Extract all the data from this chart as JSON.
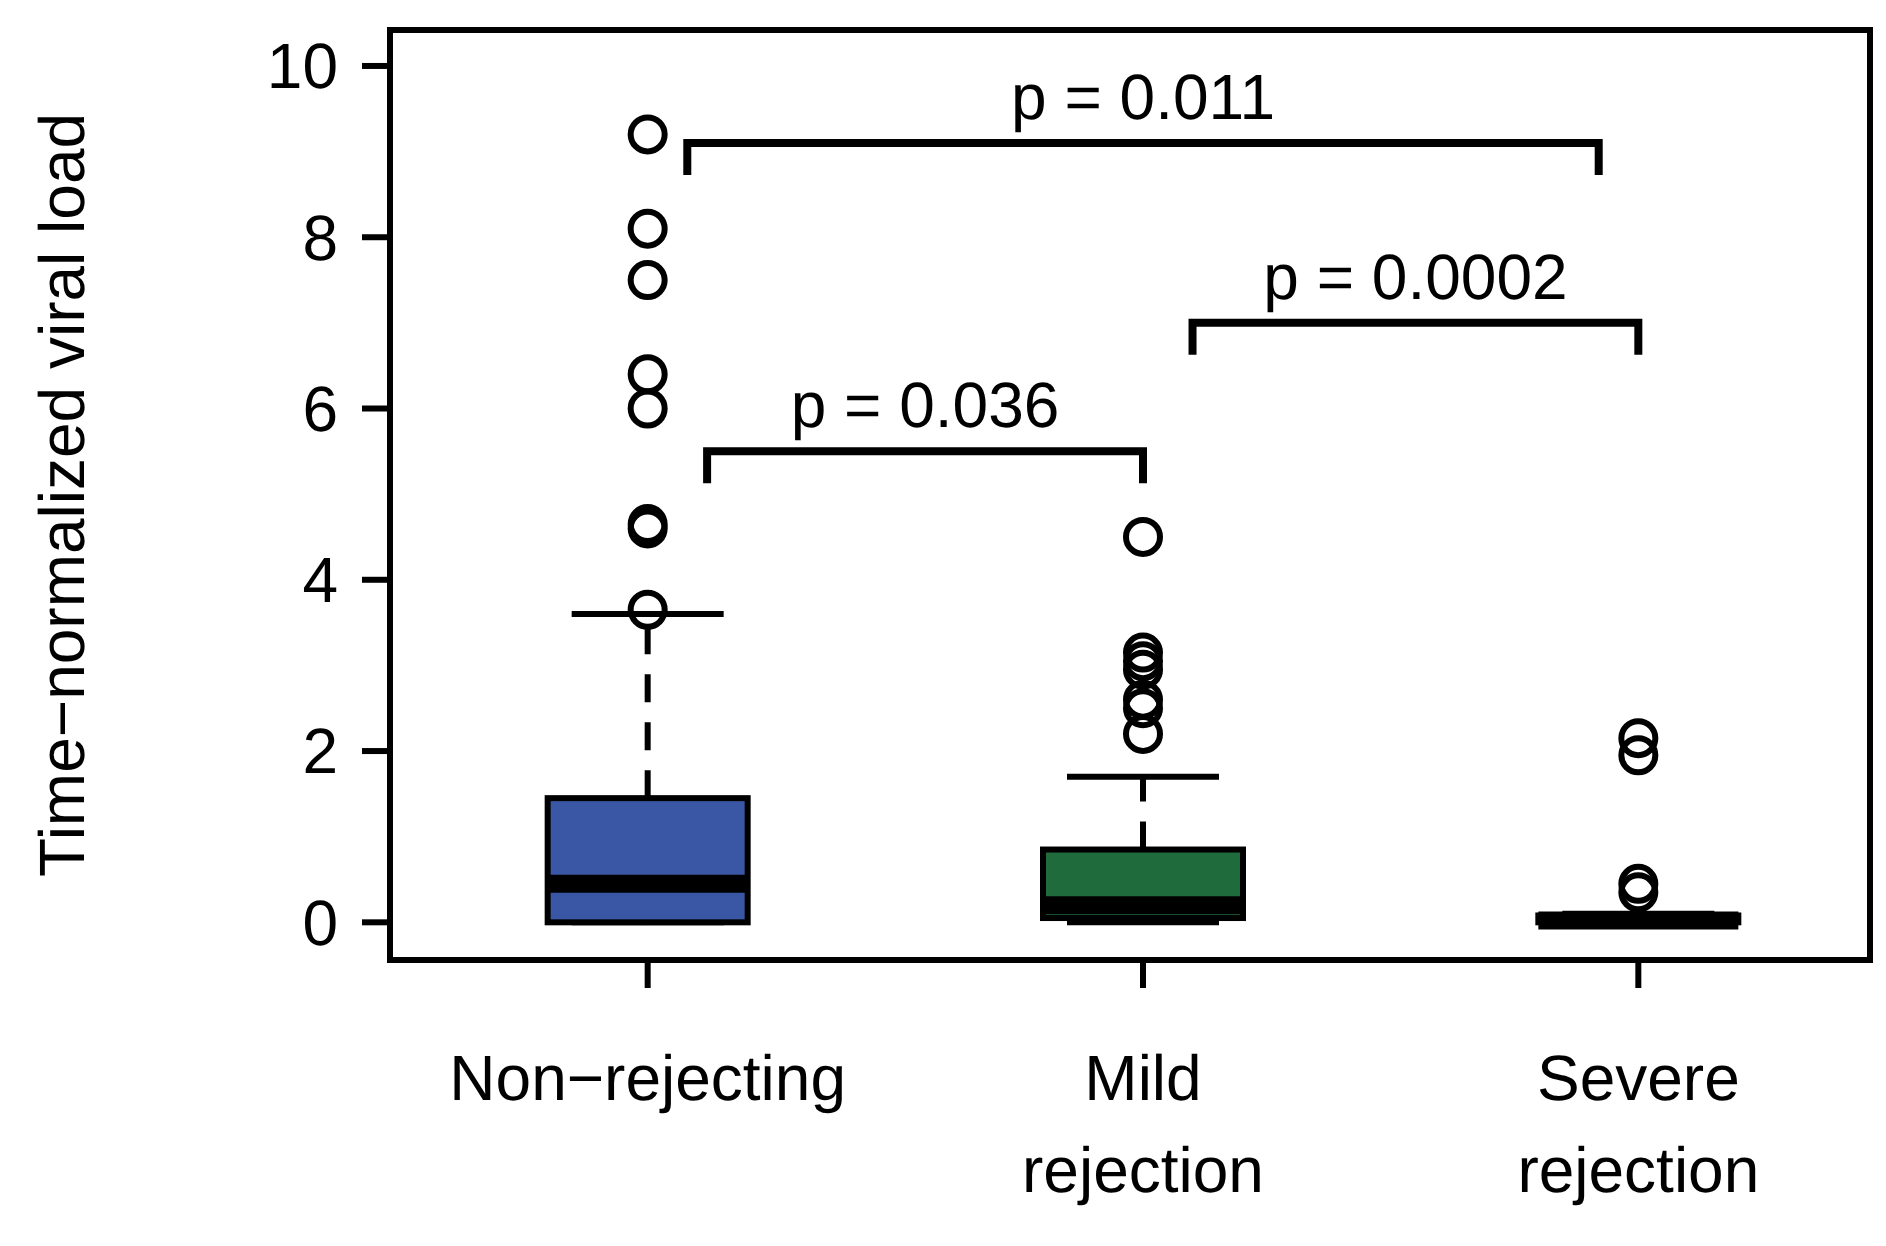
{
  "chart_data": {
    "type": "box",
    "ylabel": "Time−normalized viral load",
    "categories": [
      "Non−rejecting",
      "Mild rejection",
      "Severe rejection"
    ],
    "colors": [
      "#3a57a6",
      "#1f6b3b",
      "#1f6b3b"
    ],
    "boxes": [
      {
        "low": 0,
        "q1": 0,
        "median": 0.45,
        "q3": 1.45,
        "high": 3.6,
        "outliers": [
          9.2,
          8.1,
          7.5,
          6.4,
          6.0,
          4.65,
          4.6,
          3.65
        ]
      },
      {
        "low": 0,
        "q1": 0.05,
        "median": 0.2,
        "q3": 0.85,
        "high": 1.7,
        "outliers": [
          4.5,
          3.15,
          3.05,
          2.95,
          2.6,
          2.5,
          2.2
        ]
      },
      {
        "low": 0,
        "q1": 0,
        "median": 0.02,
        "q3": 0.08,
        "high": 0.1,
        "outliers": [
          2.15,
          1.95,
          0.45,
          0.35
        ]
      }
    ],
    "ylim": [
      -0.44,
      10.42
    ],
    "yticks": [
      0,
      2,
      4,
      6,
      8,
      10
    ],
    "grid": false,
    "annotations": [
      "p = 0.011",
      "p = 0.0002",
      "p = 0.036"
    ]
  }
}
